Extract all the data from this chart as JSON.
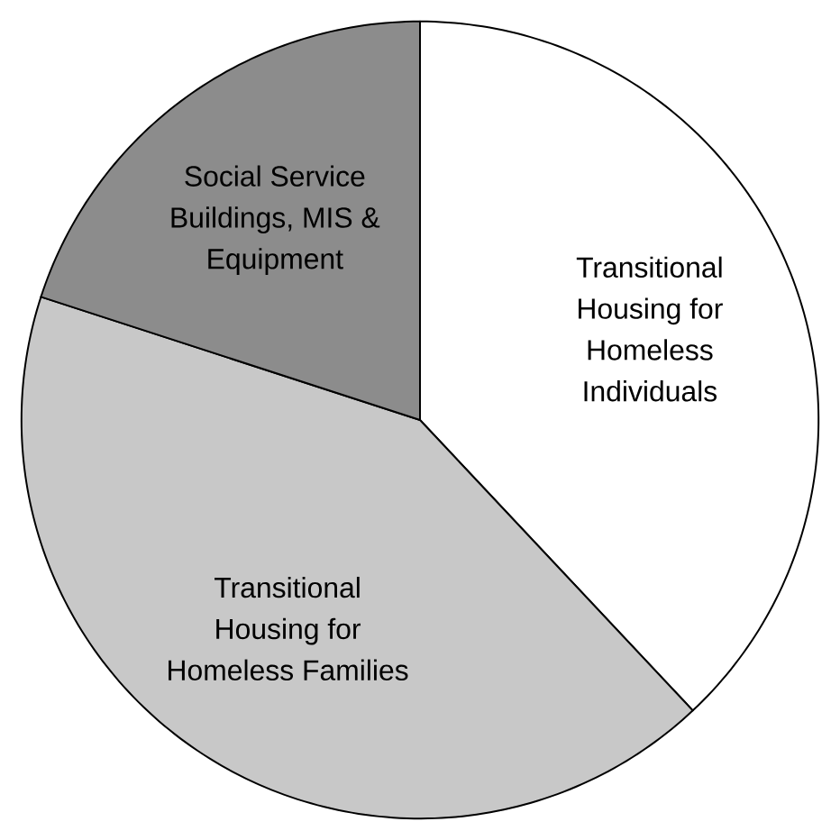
{
  "chart_data": {
    "type": "pie",
    "categories": [
      "Transitional Housing for Homeless Individuals",
      "Transitional Housing for Homeless Families",
      "Social Service Buildings, MIS & Equipment"
    ],
    "values": [
      38,
      42,
      20
    ],
    "colors": [
      "#ffffff",
      "#c8c8c8",
      "#8c8c8c"
    ]
  }
}
